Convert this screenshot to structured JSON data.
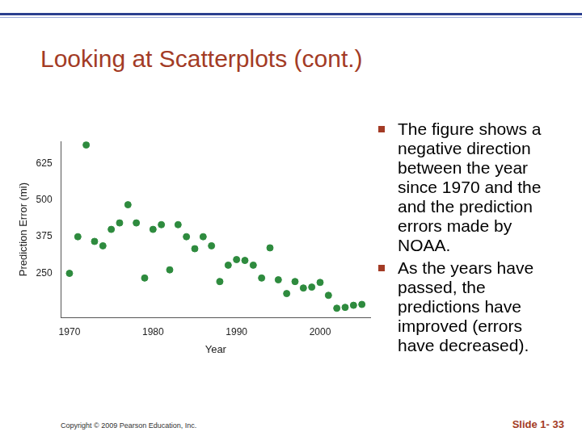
{
  "slide": {
    "title": "Looking at Scatterplots (cont.)",
    "bullets": [
      "The figure shows a negative direction between the year since 1970 and the and the prediction errors made by NOAA.",
      "As the years have passed, the predictions have improved (errors have decreased)."
    ],
    "footer": "Copyright © 2009 Pearson Education, Inc.",
    "slide_number": "Slide 1- 33"
  },
  "chart_data": {
    "type": "scatter",
    "x_label": "Year",
    "y_label": "Prediction Error (mi)",
    "x": [
      1970,
      1971,
      1972,
      1973,
      1974,
      1975,
      1976,
      1977,
      1978,
      1979,
      1980,
      1981,
      1982,
      1983,
      1984,
      1985,
      1986,
      1987,
      1988,
      1989,
      1990,
      1991,
      1992,
      1993,
      1994,
      1995,
      1996,
      1997,
      1998,
      1999,
      2000,
      2001,
      2002,
      2003,
      2004,
      2005
    ],
    "values": [
      250,
      375,
      688,
      359,
      344,
      400,
      422,
      484,
      422,
      234,
      400,
      416,
      262,
      416,
      375,
      334,
      375,
      344,
      222,
      278,
      297,
      294,
      278,
      234,
      337,
      228,
      181,
      222,
      200,
      203,
      219,
      175,
      131,
      134,
      141,
      144
    ],
    "color": "#2e8b3e",
    "marker": "circle",
    "xlim": [
      1969,
      2006
    ],
    "ylim": [
      100,
      700
    ],
    "xticks": [
      1970,
      1980,
      1990,
      2000
    ],
    "yticks": [
      250,
      375,
      500,
      625
    ],
    "grid": false
  }
}
